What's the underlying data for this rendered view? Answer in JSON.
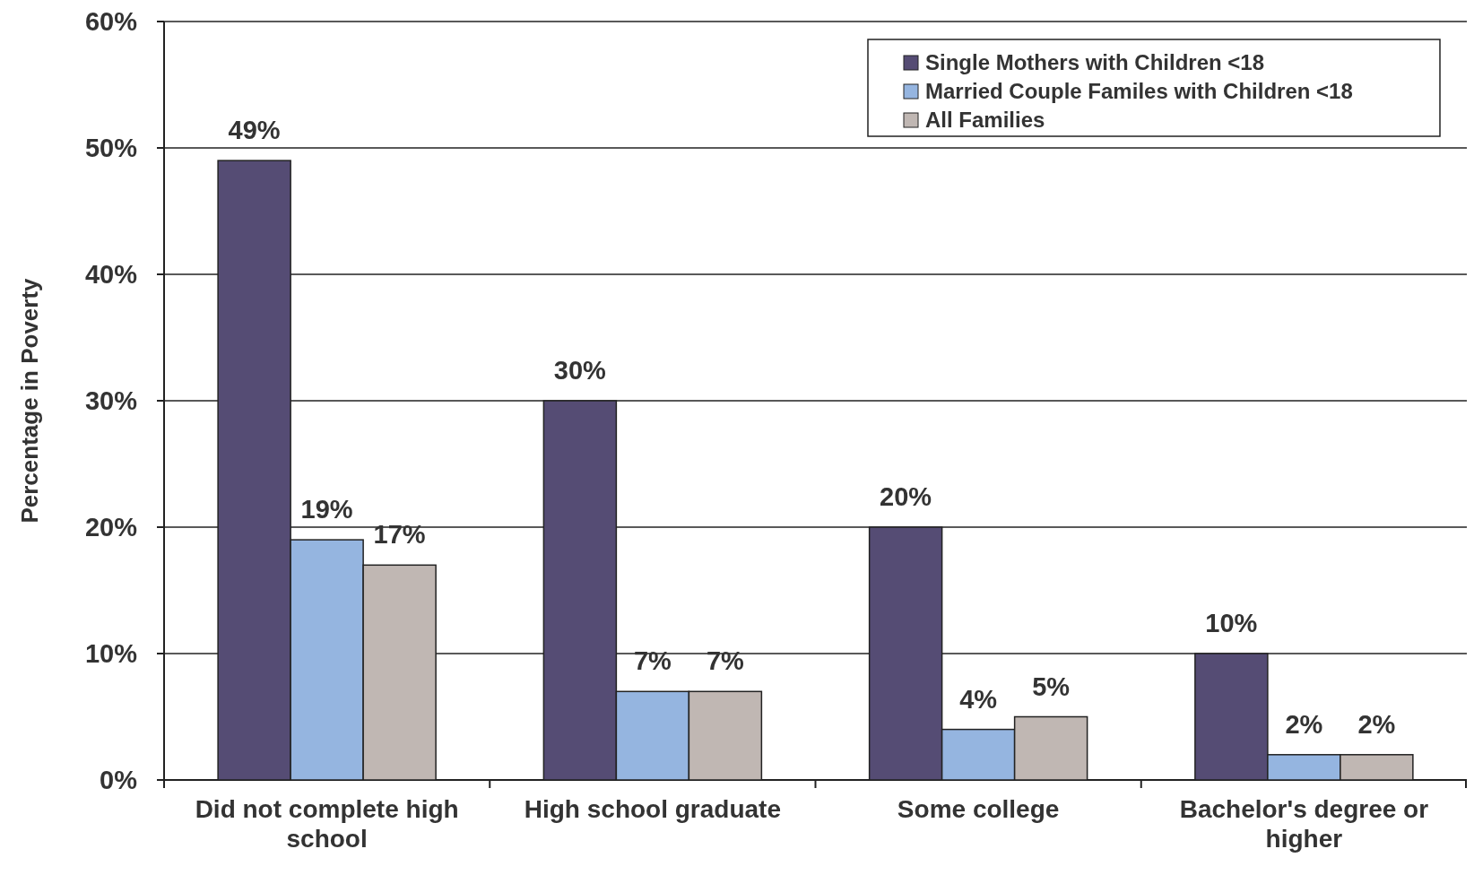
{
  "chart_data": {
    "type": "bar",
    "ylabel": "Percentage in Poverty",
    "categories": [
      "Did not complete high school",
      "High school graduate",
      "Some college",
      "Bachelor's degree or higher"
    ],
    "series": [
      {
        "name": "Single Mothers with Children <18",
        "color": "#554c74",
        "values": [
          49,
          30,
          20,
          10
        ],
        "value_labels": [
          "49%",
          "30%",
          "20%",
          "10%"
        ]
      },
      {
        "name": "Married Couple Familes with Children <18",
        "color": "#95b5e0",
        "values": [
          19,
          7,
          4,
          2
        ],
        "value_labels": [
          "19%",
          "7%",
          "4%",
          "2%"
        ]
      },
      {
        "name": "All Families",
        "color": "#c0b7b3",
        "values": [
          17,
          7,
          5,
          2
        ],
        "value_labels": [
          "17%",
          "7%",
          "5%",
          "2%"
        ]
      }
    ],
    "ylim": [
      0,
      60
    ],
    "yticks": [
      {
        "value": 0,
        "label": "0%"
      },
      {
        "value": 10,
        "label": "10%"
      },
      {
        "value": 20,
        "label": "20%"
      },
      {
        "value": 30,
        "label": "30%"
      },
      {
        "value": 40,
        "label": "40%"
      },
      {
        "value": 50,
        "label": "50%"
      },
      {
        "value": 60,
        "label": "60%"
      }
    ],
    "grid": "y",
    "legend": "top right"
  }
}
